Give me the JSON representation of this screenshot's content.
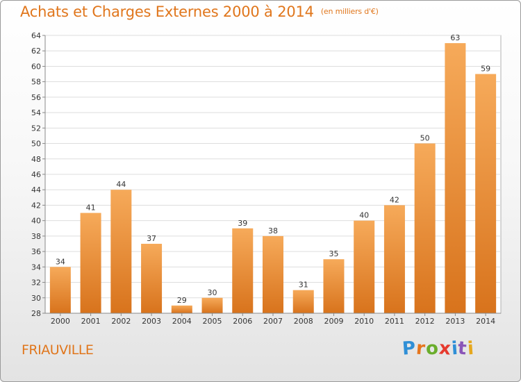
{
  "title": "Achats et Charges Externes 2000 à 2014",
  "subtitle": "(en milliers d'€)",
  "commune": "FRIAUVILLE",
  "brand": {
    "letters": [
      "P",
      "r",
      "o",
      "x",
      "i",
      "t",
      "i"
    ],
    "colors": [
      "#2f8fd6",
      "#e6761e",
      "#6aad2c",
      "#e63a2e",
      "#2f8fd6",
      "#8a55b8",
      "#e6a81e"
    ]
  },
  "colors": {
    "accent": "#e0761c",
    "bar_light": "#f6aa5a",
    "bar_dark": "#d8731c"
  },
  "chart_data": {
    "type": "bar",
    "categories": [
      "2000",
      "2001",
      "2002",
      "2003",
      "2004",
      "2005",
      "2006",
      "2007",
      "2008",
      "2009",
      "2010",
      "2011",
      "2012",
      "2013",
      "2014"
    ],
    "values": [
      34,
      41,
      44,
      37,
      29,
      30,
      39,
      38,
      31,
      35,
      40,
      42,
      50,
      63,
      59
    ],
    "data_labels": [
      "34",
      "41",
      "44",
      "37",
      "29",
      "30",
      "39",
      "38",
      "31",
      "35",
      "40",
      "42",
      "50",
      "63",
      "59"
    ],
    "yticks": [
      "28",
      "30",
      "32",
      "34",
      "36",
      "38",
      "40",
      "42",
      "44",
      "46",
      "48",
      "50",
      "52",
      "54",
      "56",
      "58",
      "60",
      "62",
      "64"
    ],
    "ylim": [
      28,
      64
    ],
    "grid": true,
    "xlabel": "",
    "ylabel": ""
  }
}
